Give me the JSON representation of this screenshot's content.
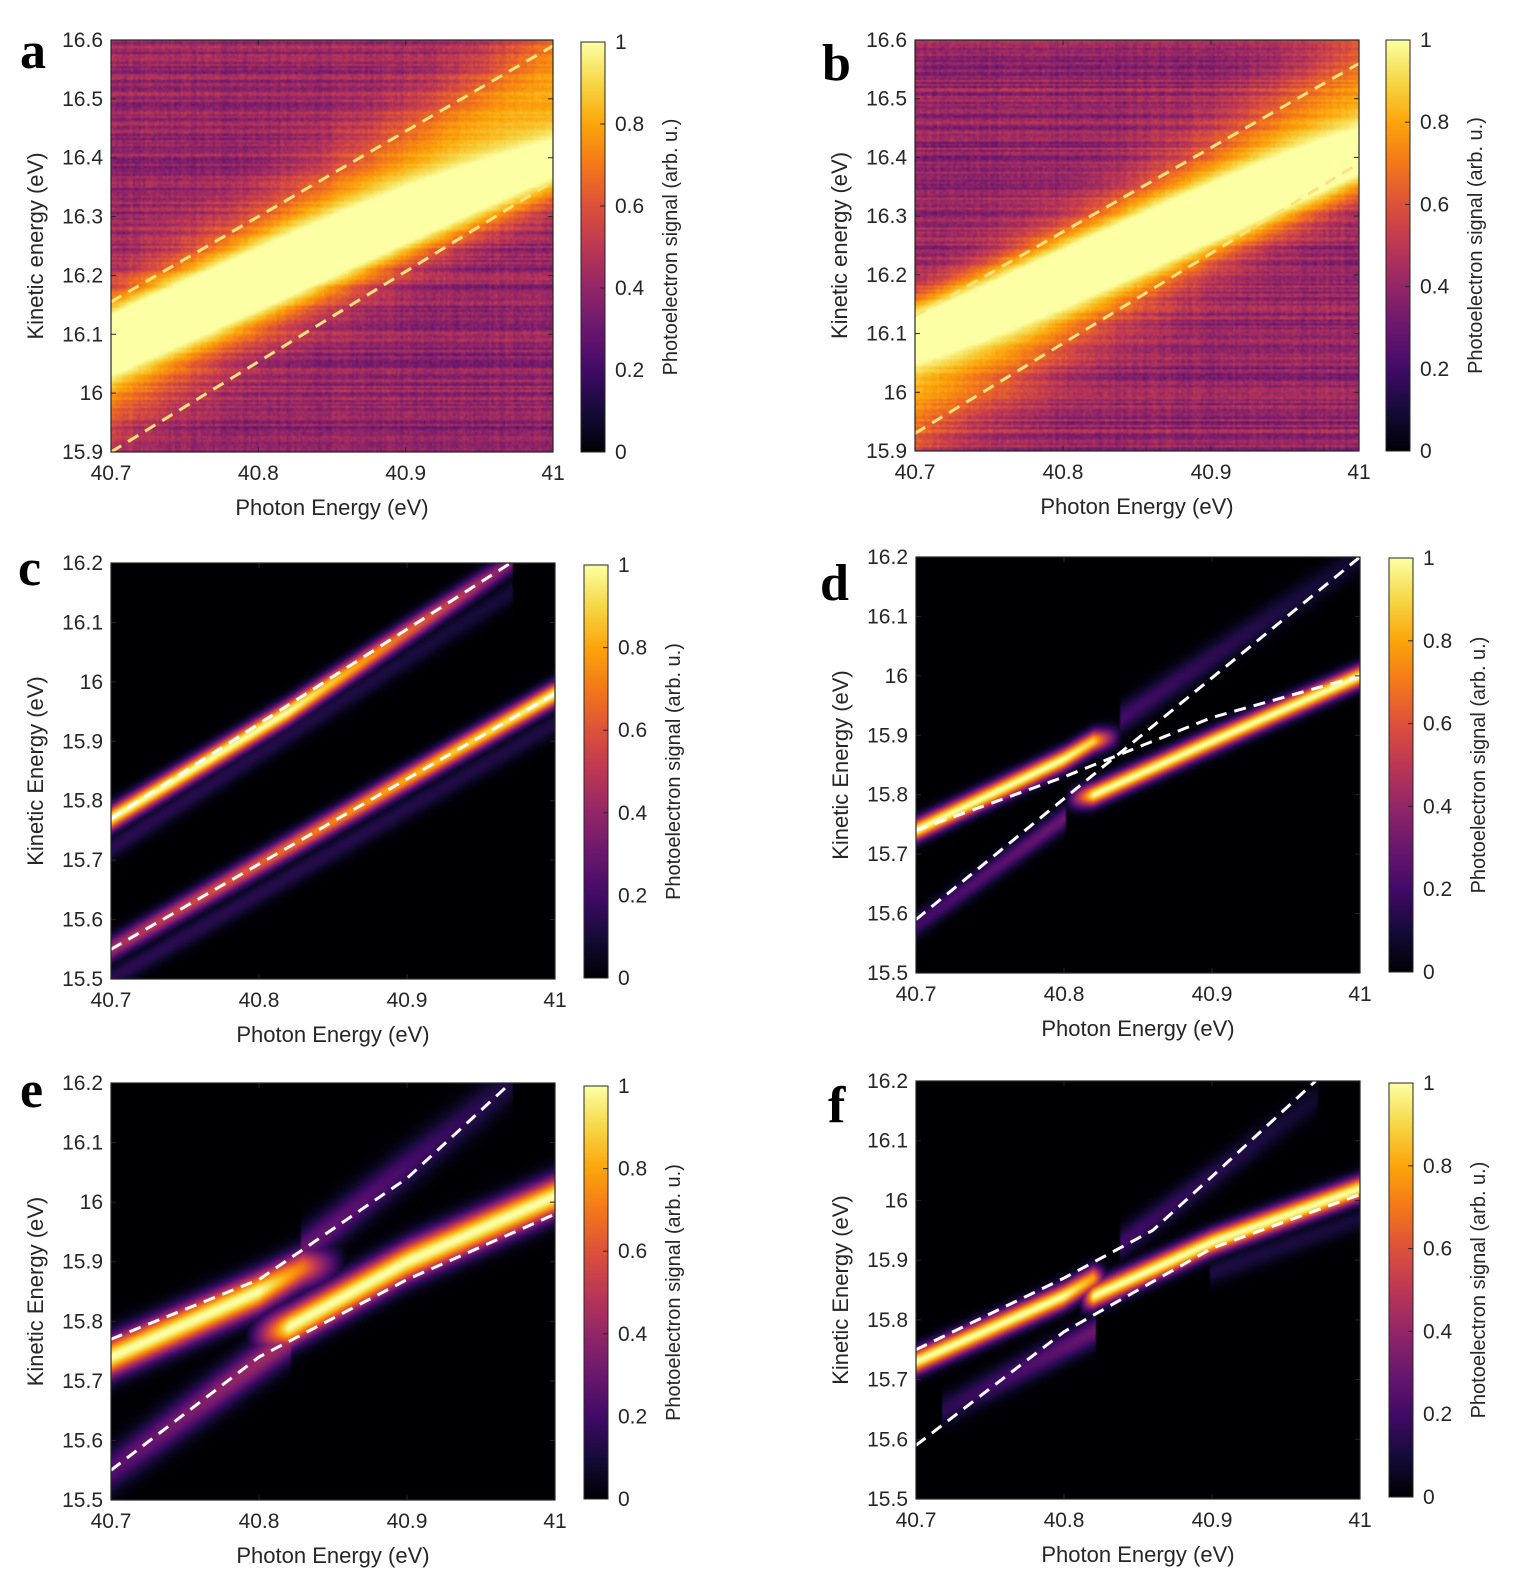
{
  "figure": {
    "colormap": "inferno",
    "colorbar": {
      "label": "Photoelectron signal (arb. u.)",
      "ticks": [
        0,
        0.2,
        0.4,
        0.6,
        0.8,
        1
      ],
      "tick_labels": [
        "0",
        "0.2",
        "0.4",
        "0.6",
        "0.8",
        "1"
      ]
    },
    "dashed_line_colors": {
      "experiment": "#ffe27a",
      "theory": "#ffffff"
    }
  },
  "chart_data": [
    {
      "panel": "a",
      "type": "heatmap",
      "kind": "experiment",
      "xlabel": "Photon Energy (eV)",
      "ylabel": "Kinetic energy (eV)",
      "xlim": [
        40.7,
        41
      ],
      "ylim": [
        15.9,
        16.6
      ],
      "xticks": [
        40.7,
        40.8,
        40.9,
        41
      ],
      "xtick_labels": [
        "40.7",
        "40.8",
        "40.9",
        "41"
      ],
      "yticks": [
        15.9,
        16,
        16.1,
        16.2,
        16.3,
        16.4,
        16.5,
        16.6
      ],
      "ytick_labels": [
        "15.9",
        "16",
        "16.1",
        "16.2",
        "16.3",
        "16.4",
        "16.5",
        "16.6"
      ],
      "dashed_lines": [
        {
          "x": [
            40.7,
            41
          ],
          "y": [
            16.155,
            16.59
          ]
        },
        {
          "x": [
            40.7,
            41
          ],
          "y": [
            15.9,
            16.36
          ]
        }
      ],
      "bands": [
        {
          "x": [
            40.7,
            41
          ],
          "y": [
            16.09,
            16.39
          ],
          "width": 0.06,
          "amp": 1.0
        },
        {
          "x": [
            40.7,
            41
          ],
          "y": [
            16.05,
            16.52
          ],
          "width": 0.12,
          "amp": 0.65
        }
      ],
      "background": 0.4
    },
    {
      "panel": "b",
      "type": "heatmap",
      "kind": "experiment",
      "xlabel": "Photon Energy (eV)",
      "ylabel": "Kinetic energy (eV)",
      "xlim": [
        40.7,
        41
      ],
      "ylim": [
        15.9,
        16.6
      ],
      "xticks": [
        40.7,
        40.8,
        40.9,
        41
      ],
      "xtick_labels": [
        "40.7",
        "40.8",
        "40.9",
        "41"
      ],
      "yticks": [
        15.9,
        16,
        16.1,
        16.2,
        16.3,
        16.4,
        16.5,
        16.6
      ],
      "ytick_labels": [
        "15.9",
        "16",
        "16.1",
        "16.2",
        "16.3",
        "16.4",
        "16.5",
        "16.6"
      ],
      "dashed_lines": [
        {
          "x": [
            40.7,
            41
          ],
          "y": [
            16.13,
            16.56
          ]
        },
        {
          "x": [
            40.7,
            41
          ],
          "y": [
            15.93,
            16.39
          ]
        }
      ],
      "bands": [
        {
          "x": [
            40.7,
            41
          ],
          "y": [
            16.1,
            16.4
          ],
          "width": 0.06,
          "amp": 1.0
        },
        {
          "x": [
            40.7,
            41
          ],
          "y": [
            16.0,
            16.5
          ],
          "width": 0.12,
          "amp": 0.6
        }
      ],
      "background": 0.4
    },
    {
      "panel": "c",
      "type": "heatmap",
      "kind": "theory",
      "xlabel": "Photon Energy (eV)",
      "ylabel": "Kinetic Energy (eV)",
      "xlim": [
        40.7,
        41
      ],
      "ylim": [
        15.5,
        16.2
      ],
      "xticks": [
        40.7,
        40.8,
        40.9,
        41
      ],
      "xtick_labels": [
        "40.7",
        "40.8",
        "40.9",
        "41"
      ],
      "yticks": [
        15.5,
        15.6,
        15.7,
        15.8,
        15.9,
        16,
        16.1,
        16.2
      ],
      "ytick_labels": [
        "15.5",
        "15.6",
        "15.7",
        "15.8",
        "15.9",
        "16",
        "16.1",
        "16.2"
      ],
      "dashed_lines": [
        {
          "x": [
            40.7,
            40.97
          ],
          "y": [
            15.77,
            16.2
          ]
        },
        {
          "x": [
            40.7,
            41
          ],
          "y": [
            15.55,
            15.98
          ]
        }
      ],
      "bands": [
        {
          "x": [
            40.7,
            40.82,
            40.97
          ],
          "y": [
            15.77,
            15.95,
            16.2
          ],
          "amp": [
            1.0,
            1.0,
            0.35
          ],
          "width": 0.02
        },
        {
          "x": [
            40.7,
            41
          ],
          "y": [
            15.55,
            15.98
          ],
          "amp": [
            0.45,
            1.0
          ],
          "width": 0.02
        },
        {
          "x": [
            40.7,
            40.97
          ],
          "y": [
            15.72,
            16.15
          ],
          "amp": [
            0.15,
            0.1
          ],
          "width": 0.02
        },
        {
          "x": [
            40.7,
            41
          ],
          "y": [
            15.5,
            15.93
          ],
          "amp": [
            0.15,
            0.12
          ],
          "width": 0.02
        }
      ]
    },
    {
      "panel": "d",
      "type": "heatmap",
      "kind": "theory",
      "xlabel": "Photon Energy (eV)",
      "ylabel": "Kinetic Energy (eV)",
      "xlim": [
        40.7,
        41
      ],
      "ylim": [
        15.5,
        16.2
      ],
      "xticks": [
        40.7,
        40.8,
        40.9,
        41
      ],
      "xtick_labels": [
        "40.7",
        "40.8",
        "40.9",
        "41"
      ],
      "yticks": [
        15.5,
        15.6,
        15.7,
        15.8,
        15.9,
        16,
        16.1,
        16.2
      ],
      "ytick_labels": [
        "15.5",
        "15.6",
        "15.7",
        "15.8",
        "15.9",
        "16",
        "16.1",
        "16.2"
      ],
      "dashed_lines": [
        {
          "x": [
            40.7,
            41
          ],
          "y": [
            15.59,
            16.2
          ]
        },
        {
          "x": [
            40.7,
            40.8,
            40.9,
            41
          ],
          "y": [
            15.74,
            15.83,
            15.93,
            16.0
          ]
        }
      ],
      "bands": [
        {
          "x": [
            40.7,
            40.8,
            40.82,
            40.84
          ],
          "y": [
            15.74,
            15.86,
            15.89,
            15.9
          ],
          "amp": [
            1.0,
            1.0,
            0.9,
            0.0
          ],
          "width": 0.018
        },
        {
          "x": [
            40.8,
            40.82,
            40.9,
            41
          ],
          "y": [
            15.79,
            15.8,
            15.89,
            16.0
          ],
          "amp": [
            0.0,
            1.0,
            1.0,
            1.0
          ],
          "width": 0.018
        },
        {
          "x": [
            40.84,
            41
          ],
          "y": [
            15.93,
            16.2
          ],
          "amp": [
            0.2,
            0.08
          ],
          "width": 0.025
        },
        {
          "x": [
            40.7,
            40.8
          ],
          "y": [
            15.58,
            15.76
          ],
          "amp": [
            0.2,
            0.3
          ],
          "width": 0.02
        }
      ]
    },
    {
      "panel": "e",
      "type": "heatmap",
      "kind": "theory",
      "xlabel": "Photon Energy (eV)",
      "ylabel": "Kinetic Energy (eV)",
      "xlim": [
        40.7,
        41
      ],
      "ylim": [
        15.5,
        16.2
      ],
      "xticks": [
        40.7,
        40.8,
        40.9,
        41
      ],
      "xtick_labels": [
        "40.7",
        "40.8",
        "40.9",
        "41"
      ],
      "yticks": [
        15.5,
        15.6,
        15.7,
        15.8,
        15.9,
        16,
        16.1,
        16.2
      ],
      "ytick_labels": [
        "15.5",
        "15.6",
        "15.7",
        "15.8",
        "15.9",
        "16",
        "16.1",
        "16.2"
      ],
      "dashed_lines": [
        {
          "x": [
            40.7,
            40.8,
            40.9,
            40.97
          ],
          "y": [
            15.77,
            15.87,
            16.04,
            16.2
          ]
        },
        {
          "x": [
            40.7,
            40.8,
            40.9,
            41
          ],
          "y": [
            15.55,
            15.74,
            15.87,
            15.98
          ]
        }
      ],
      "bands": [
        {
          "x": [
            40.7,
            40.8,
            40.83,
            40.86
          ],
          "y": [
            15.74,
            15.85,
            15.89,
            15.9
          ],
          "amp": [
            1.0,
            1.0,
            0.7,
            0.0
          ],
          "width": 0.032
        },
        {
          "x": [
            40.79,
            40.82,
            40.9,
            41
          ],
          "y": [
            15.77,
            15.79,
            15.9,
            16.01
          ],
          "amp": [
            0.0,
            1.0,
            1.0,
            1.0
          ],
          "width": 0.032
        },
        {
          "x": [
            40.83,
            40.97
          ],
          "y": [
            15.92,
            16.2
          ],
          "amp": [
            0.3,
            0.12
          ],
          "width": 0.035
        },
        {
          "x": [
            40.7,
            40.82
          ],
          "y": [
            15.55,
            15.77
          ],
          "amp": [
            0.25,
            0.45
          ],
          "width": 0.035
        }
      ]
    },
    {
      "panel": "f",
      "type": "heatmap",
      "kind": "theory",
      "xlabel": "Photon Energy (eV)",
      "ylabel": "Kinetic Energy (eV)",
      "xlim": [
        40.7,
        41
      ],
      "ylim": [
        15.5,
        16.2
      ],
      "xticks": [
        40.7,
        40.8,
        40.9,
        41
      ],
      "xtick_labels": [
        "40.7",
        "40.8",
        "40.9",
        "41"
      ],
      "yticks": [
        15.5,
        15.6,
        15.7,
        15.8,
        15.9,
        16,
        16.1,
        16.2
      ],
      "ytick_labels": [
        "15.5",
        "15.6",
        "15.7",
        "15.8",
        "15.9",
        "16",
        "16.1",
        "16.2"
      ],
      "dashed_lines": [
        {
          "x": [
            40.7,
            40.8,
            40.86,
            40.9,
            40.97
          ],
          "y": [
            15.75,
            15.87,
            15.95,
            16.04,
            16.2
          ]
        },
        {
          "x": [
            40.7,
            40.8,
            40.9,
            41
          ],
          "y": [
            15.59,
            15.78,
            15.92,
            16.01
          ]
        }
      ],
      "bands": [
        {
          "x": [
            40.7,
            40.8,
            40.82,
            40.83
          ],
          "y": [
            15.73,
            15.84,
            15.87,
            15.87
          ],
          "amp": [
            1.0,
            1.0,
            0.8,
            0.0
          ],
          "width": 0.02
        },
        {
          "x": [
            40.81,
            40.82,
            40.9,
            41
          ],
          "y": [
            15.83,
            15.84,
            15.93,
            16.02
          ],
          "amp": [
            0.0,
            1.0,
            1.0,
            1.0
          ],
          "width": 0.02
        },
        {
          "x": [
            40.84,
            40.97
          ],
          "y": [
            15.93,
            16.17
          ],
          "amp": [
            0.2,
            0.08
          ],
          "width": 0.025
        },
        {
          "x": [
            40.72,
            40.82
          ],
          "y": [
            15.65,
            15.78
          ],
          "amp": [
            0.15,
            0.3
          ],
          "width": 0.025
        },
        {
          "x": [
            40.9,
            41
          ],
          "y": [
            15.88,
            15.97
          ],
          "amp": [
            0.12,
            0.1
          ],
          "width": 0.02
        }
      ]
    }
  ]
}
